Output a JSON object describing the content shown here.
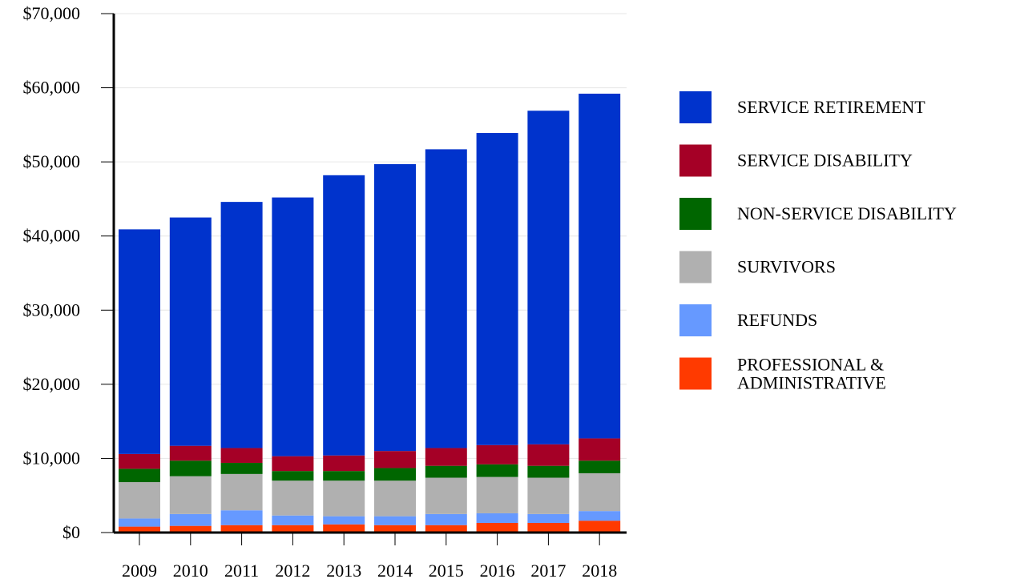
{
  "chart_data": {
    "type": "bar",
    "stacked": true,
    "title": "",
    "xlabel": "",
    "ylabel": "",
    "ylim": [
      0,
      70000
    ],
    "y_ticks": [
      "$0",
      "$10,000",
      "$20,000",
      "$30,000",
      "$40,000",
      "$50,000",
      "$60,000",
      "$70,000"
    ],
    "y_tick_values": [
      0,
      10000,
      20000,
      30000,
      40000,
      50000,
      60000,
      70000
    ],
    "grid": true,
    "legend_position": "right",
    "categories": [
      "2009",
      "2010",
      "2011",
      "2012",
      "2013",
      "2014",
      "2015",
      "2016",
      "2017",
      "2018"
    ],
    "series": [
      {
        "name": "PROFESSIONAL & ADMINISTRATIVE",
        "name_lines": [
          "PROFESSIONAL &",
          "ADMINISTRATIVE"
        ],
        "color": "#ff3a00",
        "values": [
          800,
          900,
          1000,
          1000,
          1100,
          1000,
          1000,
          1300,
          1300,
          1600
        ]
      },
      {
        "name": "REFUNDS",
        "name_lines": [
          "REFUNDS"
        ],
        "color": "#6699ff",
        "values": [
          1100,
          1600,
          2000,
          1300,
          1100,
          1200,
          1500,
          1300,
          1200,
          1300
        ]
      },
      {
        "name": "SURVIVORS",
        "name_lines": [
          "SURVIVORS"
        ],
        "color": "#b0b0b0",
        "values": [
          4900,
          5100,
          4900,
          4700,
          4800,
          4800,
          4900,
          4900,
          4900,
          5100
        ]
      },
      {
        "name": "NON-SERVICE DISABILITY",
        "name_lines": [
          "NON-SERVICE DISABILITY"
        ],
        "color": "#006600",
        "values": [
          1800,
          2100,
          1500,
          1300,
          1300,
          1700,
          1600,
          1700,
          1600,
          1700
        ]
      },
      {
        "name": "SERVICE DISABILITY",
        "name_lines": [
          "SERVICE DISABILITY"
        ],
        "color": "#a50026",
        "values": [
          2000,
          2000,
          2000,
          2000,
          2100,
          2300,
          2400,
          2600,
          2900,
          3000
        ]
      },
      {
        "name": "SERVICE RETIREMENT",
        "name_lines": [
          "SERVICE RETIREMENT"
        ],
        "color": "#0033cc",
        "values": [
          30300,
          30800,
          33200,
          34900,
          37800,
          38700,
          40300,
          42100,
          45000,
          46500
        ]
      }
    ],
    "legend_order": [
      "SERVICE RETIREMENT",
      "SERVICE DISABILITY",
      "NON-SERVICE DISABILITY",
      "SURVIVORS",
      "REFUNDS",
      "PROFESSIONAL & ADMINISTRATIVE"
    ]
  }
}
